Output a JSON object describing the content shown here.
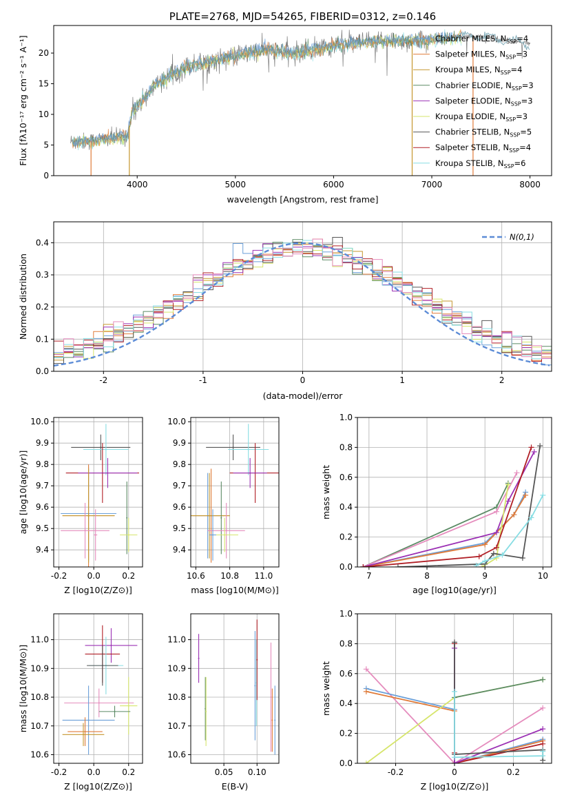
{
  "colors": [
    "#6a9fd8",
    "#e07b39",
    "#c5962d",
    "#5a8a64",
    "#9b30b4",
    "#d6e56b",
    "#555555",
    "#b01e25",
    "#87dde3",
    "#e58cbd"
  ],
  "chart_data": [
    {
      "type": "line",
      "panel": "spectrum",
      "title": "PLATE=2768, MJD=54265, FIBERID=0312, z=0.146",
      "xlabel": "wavelength [Angstrom, rest frame]",
      "ylabel": "Flux [fλ10⁻¹⁷ erg cm⁻² s⁻¹ A⁻¹]",
      "xlim": [
        3150,
        8220
      ],
      "ylim": [
        0,
        24.5
      ],
      "xticks": [
        "4000",
        "5000",
        "6000",
        "7000",
        "8000"
      ],
      "yticks": [
        "0",
        "5",
        "10",
        "15",
        "20"
      ],
      "legend_position": "upper-right",
      "legend": [
        {
          "name": "Chabrier MILES, N",
          "sub": "SSP",
          "val": "=4"
        },
        {
          "name": "Salpeter MILES, N",
          "sub": "SSP",
          "val": "=3"
        },
        {
          "name": "Kroupa MILES, N",
          "sub": "SSP",
          "val": "=4"
        },
        {
          "name": "Chabrier ELODIE, N",
          "sub": "SSP",
          "val": "=3"
        },
        {
          "name": "Salpeter ELODIE, N",
          "sub": "SSP",
          "val": "=3"
        },
        {
          "name": "Kroupa ELODIE, N",
          "sub": "SSP",
          "val": "=3"
        },
        {
          "name": "Chabrier STELIB, N",
          "sub": "SSP",
          "val": "=5"
        },
        {
          "name": "Salpeter STELIB, N",
          "sub": "SSP",
          "val": "=4"
        },
        {
          "name": "Kroupa STELIB, N",
          "sub": "SSP",
          "val": "=6"
        }
      ],
      "data_range": [
        3320,
        8000
      ],
      "continuum": {
        "x": [
          3320,
          3500,
          3900,
          3950,
          4200,
          4500,
          4800,
          5000,
          5300,
          5600,
          6000,
          6400,
          6800,
          7200,
          7500,
          8000
        ],
        "y": [
          5.5,
          5.6,
          6.5,
          10.5,
          15,
          17.8,
          18.8,
          19.5,
          20.5,
          19.9,
          21.2,
          21.8,
          22,
          22.5,
          22.8,
          21.5
        ]
      },
      "vertical_lines": [
        {
          "x": 3530,
          "color_index": 1
        },
        {
          "x": 3920,
          "color_index": 2
        },
        {
          "x": 6800,
          "color_index": 2
        },
        {
          "x": 7420,
          "color_index": 1
        }
      ]
    },
    {
      "type": "line",
      "panel": "residual-histogram",
      "xlabel": "(data-model)/error",
      "ylabel": "Normed distribution",
      "xlim": [
        -2.5,
        2.5
      ],
      "ylim": [
        0,
        0.465
      ],
      "xticks": [
        -2,
        -1,
        0,
        1,
        2
      ],
      "yticks": [
        0,
        0.1,
        0.2,
        0.3,
        0.4
      ],
      "grid": true,
      "legend_position": "upper-right",
      "legend_label": "N(0,1)",
      "gaussian": {
        "mean": 0,
        "sigma": 1,
        "style": "dashed",
        "color": "#5b8bd6"
      },
      "bin_width": 0.1
    },
    {
      "type": "scatter",
      "panel": "age-vs-Z",
      "xlabel": "Z [log10(Z/Z⊙)]",
      "ylabel": "age [log10(age/yr)]",
      "xlim": [
        -0.23,
        0.28
      ],
      "ylim": [
        9.32,
        10.02
      ],
      "xticks": [
        -0.2,
        0.0,
        0.2
      ],
      "yticks": [
        9.4,
        9.5,
        9.6,
        9.7,
        9.8,
        9.9,
        10.0
      ],
      "grid": true,
      "points": [
        {
          "x": 0.04,
          "y": 9.88,
          "xerr": 0.17,
          "yerr": 0.06,
          "c": 6
        },
        {
          "x": 0.07,
          "y": 9.87,
          "xerr": 0.13,
          "yerr": 0.12,
          "c": 8
        },
        {
          "x": 0.05,
          "y": 9.76,
          "xerr": 0.21,
          "yerr": 0.14,
          "c": 7
        },
        {
          "x": 0.08,
          "y": 9.76,
          "xerr": 0.17,
          "yerr": 0.07,
          "c": 4
        },
        {
          "x": -0.03,
          "y": 9.57,
          "xerr": 0.16,
          "yerr": 0.22,
          "c": 0
        },
        {
          "x": -0.03,
          "y": 9.56,
          "xerr": 0.15,
          "yerr": 0.24,
          "c": 1
        },
        {
          "x": -0.03,
          "y": 9.56,
          "xerr": 0.15,
          "yerr": 0.22,
          "c": 2
        },
        {
          "x": 0.19,
          "y": 9.55,
          "xerr": 0.0,
          "yerr": 0.17,
          "c": 3
        },
        {
          "x": -0.05,
          "y": 9.49,
          "xerr": 0.14,
          "yerr": 0.13,
          "c": 9
        },
        {
          "x": 0.2,
          "y": 9.47,
          "xerr": 0.05,
          "yerr": 0.08,
          "c": 5
        },
        {
          "x": 0.01,
          "y": 9.47,
          "xerr": 0.01,
          "yerr": 0.12,
          "c": 9
        }
      ]
    },
    {
      "type": "scatter",
      "panel": "age-vs-mass",
      "xlabel": "mass [log10(M/M⊙)]",
      "ylabel": "",
      "xlim": [
        10.57,
        11.09
      ],
      "ylim": [
        9.32,
        10.02
      ],
      "xticks": [
        10.6,
        10.8,
        11.0
      ],
      "yticks": [
        9.4,
        9.5,
        9.6,
        9.7,
        9.8,
        9.9,
        10.0
      ],
      "grid": true,
      "points": [
        {
          "x": 10.82,
          "y": 9.88,
          "xerr": 0.16,
          "yerr": 0.06,
          "c": 6
        },
        {
          "x": 10.91,
          "y": 9.87,
          "xerr": 0.12,
          "yerr": 0.12,
          "c": 8
        },
        {
          "x": 10.95,
          "y": 9.76,
          "xerr": 0.15,
          "yerr": 0.14,
          "c": 7
        },
        {
          "x": 10.92,
          "y": 9.76,
          "xerr": 0.1,
          "yerr": 0.07,
          "c": 4
        },
        {
          "x": 10.67,
          "y": 9.56,
          "xerr": 0.1,
          "yerr": 0.2,
          "c": 0
        },
        {
          "x": 10.69,
          "y": 9.56,
          "xerr": 0.11,
          "yerr": 0.22,
          "c": 1
        },
        {
          "x": 10.68,
          "y": 9.56,
          "xerr": 0.12,
          "yerr": 0.2,
          "c": 2
        },
        {
          "x": 10.75,
          "y": 9.55,
          "xerr": 0.0,
          "yerr": 0.17,
          "c": 3
        },
        {
          "x": 10.78,
          "y": 9.49,
          "xerr": 0.11,
          "yerr": 0.13,
          "c": 9
        },
        {
          "x": 10.77,
          "y": 9.47,
          "xerr": 0.08,
          "yerr": 0.08,
          "c": 5
        },
        {
          "x": 10.7,
          "y": 9.47,
          "xerr": 0.02,
          "yerr": 0.12,
          "c": 0
        }
      ]
    },
    {
      "type": "line",
      "panel": "mass-weight-vs-age",
      "xlabel": "age [log10(age/yr)]",
      "ylabel": "mass weight",
      "xlim": [
        6.8,
        10.15
      ],
      "ylim": [
        0,
        1.0
      ],
      "xticks": [
        7,
        8,
        9,
        10
      ],
      "yticks": [
        0.0,
        0.2,
        0.4,
        0.6,
        0.8,
        1.0
      ],
      "grid": true,
      "series": [
        {
          "c": 3,
          "x": [
            6.9,
            9.2,
            9.4
          ],
          "y": [
            0.0,
            0.4,
            0.56
          ]
        },
        {
          "c": 9,
          "x": [
            6.9,
            9.2,
            9.55
          ],
          "y": [
            0.0,
            0.37,
            0.63
          ]
        },
        {
          "c": 0,
          "x": [
            6.9,
            9.0,
            9.5,
            9.7
          ],
          "y": [
            0.0,
            0.16,
            0.35,
            0.5
          ]
        },
        {
          "c": 1,
          "x": [
            6.9,
            9.0,
            9.5,
            9.7
          ],
          "y": [
            0.0,
            0.15,
            0.35,
            0.48
          ]
        },
        {
          "c": 4,
          "x": [
            6.9,
            9.2,
            9.4,
            9.85
          ],
          "y": [
            0.0,
            0.23,
            0.44,
            0.77
          ]
        },
        {
          "c": 5,
          "x": [
            8.95,
            9.2,
            9.4
          ],
          "y": [
            0.0,
            0.06,
            0.55
          ]
        },
        {
          "c": 7,
          "x": [
            6.9,
            8.9,
            9.2,
            9.8
          ],
          "y": [
            0.0,
            0.07,
            0.13,
            0.8
          ]
        },
        {
          "c": 6,
          "x": [
            7.5,
            9.0,
            9.15,
            9.65,
            9.95
          ],
          "y": [
            0.0,
            0.02,
            0.09,
            0.06,
            0.81
          ]
        },
        {
          "c": 8,
          "x": [
            8.85,
            9.0,
            9.3,
            9.8,
            10.0
          ],
          "y": [
            0.01,
            0.04,
            0.08,
            0.33,
            0.48
          ]
        }
      ]
    },
    {
      "type": "scatter",
      "panel": "mass-vs-Z",
      "xlabel": "Z [log10(Z/Z⊙)]",
      "ylabel": "mass [log10(M/M⊙)]",
      "xlim": [
        -0.23,
        0.28
      ],
      "ylim": [
        10.57,
        11.09
      ],
      "xticks": [
        -0.2,
        0.0,
        0.2
      ],
      "yticks": [
        10.6,
        10.7,
        10.8,
        10.9,
        11.0
      ],
      "grid": true,
      "points": [
        {
          "x": 0.1,
          "y": 10.98,
          "xerr": 0.15,
          "yerr": 0.06,
          "c": 4
        },
        {
          "x": 0.05,
          "y": 10.95,
          "xerr": 0.1,
          "yerr": 0.1,
          "c": 7
        },
        {
          "x": 0.07,
          "y": 10.91,
          "xerr": 0.1,
          "yerr": 0.1,
          "c": 8
        },
        {
          "x": 0.05,
          "y": 10.91,
          "xerr": 0.09,
          "yerr": 0.07,
          "c": 6
        },
        {
          "x": 0.03,
          "y": 10.78,
          "xerr": 0.2,
          "yerr": 0.05,
          "c": 9
        },
        {
          "x": 0.2,
          "y": 10.77,
          "xerr": 0.05,
          "yerr": 0.1,
          "c": 5
        },
        {
          "x": 0.12,
          "y": 10.75,
          "xerr": 0.09,
          "yerr": 0.02,
          "c": 3
        },
        {
          "x": -0.03,
          "y": 10.72,
          "xerr": 0.15,
          "yerr": 0.12,
          "c": 0
        },
        {
          "x": -0.05,
          "y": 10.68,
          "xerr": 0.1,
          "yerr": 0.05,
          "c": 1
        },
        {
          "x": -0.06,
          "y": 10.67,
          "xerr": 0.12,
          "yerr": 0.04,
          "c": 2
        }
      ]
    },
    {
      "type": "scatter",
      "panel": "mass-vs-EBV",
      "xlabel": "E(B-V)",
      "ylabel": "",
      "xlim": [
        0.0,
        0.133
      ],
      "ylim": [
        10.57,
        11.09
      ],
      "xticks": [
        0.05,
        0.1
      ],
      "yticks": [
        10.6,
        10.7,
        10.8,
        10.9,
        11.0
      ],
      "grid": true,
      "points": [
        {
          "x": 0.012,
          "y": 10.935,
          "yerr": 0.085,
          "c": 4
        },
        {
          "x": 0.022,
          "y": 10.76,
          "yerr": 0.11,
          "c": 3
        },
        {
          "x": 0.023,
          "y": 10.75,
          "yerr": 0.12,
          "c": 5
        },
        {
          "x": 0.097,
          "y": 10.84,
          "yerr": 0.19,
          "c": 0
        },
        {
          "x": 0.099,
          "y": 10.85,
          "yerr": 0.15,
          "c": 8
        },
        {
          "x": 0.1,
          "y": 10.93,
          "yerr": 0.14,
          "c": 7
        },
        {
          "x": 0.121,
          "y": 10.8,
          "yerr": 0.19,
          "c": 9
        },
        {
          "x": 0.123,
          "y": 10.72,
          "yerr": 0.11,
          "c": 1
        },
        {
          "x": 0.127,
          "y": 10.72,
          "yerr": 0.12,
          "c": 0
        }
      ]
    },
    {
      "type": "line",
      "panel": "mass-weight-vs-Z",
      "xlabel": "Z [log10(Z/Z⊙)]",
      "ylabel": "mass weight",
      "xlim": [
        -0.33,
        0.33
      ],
      "ylim": [
        0,
        1.0
      ],
      "xticks": [
        -0.2,
        0.0,
        0.2
      ],
      "yticks": [
        0.0,
        0.2,
        0.4,
        0.6,
        0.8,
        1.0
      ],
      "grid": true,
      "series": [
        {
          "c": 9,
          "x": [
            -0.3,
            0.0,
            0.3
          ],
          "y": [
            0.63,
            0.0,
            0.37
          ]
        },
        {
          "c": 0,
          "x": [
            -0.3,
            0.0,
            0.0,
            0.3
          ],
          "y": [
            0.5,
            0.36,
            0.0,
            0.16
          ]
        },
        {
          "c": 1,
          "x": [
            -0.3,
            0.0,
            0.0,
            0.3
          ],
          "y": [
            0.48,
            0.35,
            0.0,
            0.15
          ]
        },
        {
          "c": 5,
          "x": [
            -0.3,
            0.0,
            0.3
          ],
          "y": [
            0.0,
            0.44,
            0.56
          ]
        },
        {
          "c": 3,
          "x": [
            0.0,
            0.0,
            0.3
          ],
          "y": [
            0.0,
            0.44,
            0.56
          ]
        },
        {
          "c": 7,
          "x": [
            0.0,
            0.0,
            0.0,
            0.3
          ],
          "y": [
            0.8,
            0.07,
            0.0,
            0.13
          ]
        },
        {
          "c": 4,
          "x": [
            0.0,
            0.0,
            0.3
          ],
          "y": [
            0.77,
            0.0,
            0.23
          ]
        },
        {
          "c": 6,
          "x": [
            0.0,
            0.0,
            0.3,
            0.3
          ],
          "y": [
            0.81,
            0.06,
            0.09,
            0.02
          ]
        },
        {
          "c": 8,
          "x": [
            0.0,
            0.0,
            0.3,
            0.3
          ],
          "y": [
            0.48,
            0.04,
            0.05,
            0.08
          ]
        }
      ]
    }
  ]
}
